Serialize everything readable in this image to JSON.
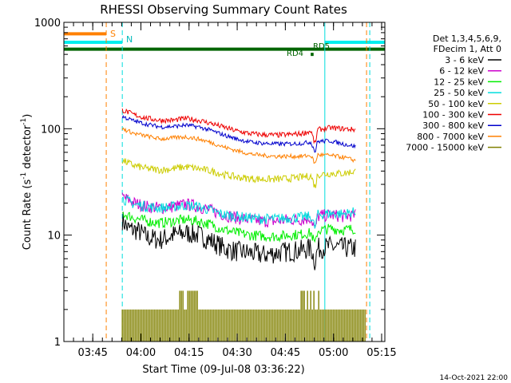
{
  "chart_data": {
    "type": "line",
    "title": "RHESSI Observing Summary Count Rates",
    "xlabel": "Start Time (09-Jul-08 03:36:22)",
    "ylabel": "Count Rate (s⁻¹ detector⁻¹)",
    "ylabel_parts": {
      "pre": "Count Rate (s",
      "sup1": "-1",
      "mid": " detector",
      "sup2": "-1",
      "post": ")"
    },
    "yscale": "log",
    "xlim_min": [
      0,
      100
    ],
    "ylim": [
      1,
      1000
    ],
    "x_ticks": [
      {
        "value": 9,
        "label": "03:45"
      },
      {
        "value": 24,
        "label": "04:00"
      },
      {
        "value": 39,
        "label": "04:15"
      },
      {
        "value": 54,
        "label": "04:30"
      },
      {
        "value": 69,
        "label": "04:45"
      },
      {
        "value": 84,
        "label": "05:00"
      },
      {
        "value": 99,
        "label": "05:15"
      }
    ],
    "y_ticks": [
      {
        "value": 1,
        "label": "1"
      },
      {
        "value": 10,
        "label": "10"
      },
      {
        "value": 100,
        "label": "100"
      },
      {
        "value": 1000,
        "label": "1000"
      }
    ],
    "legend_header": [
      "Det 1,3,4,5,6,9,",
      "FDecim 1, Att 0"
    ],
    "series": [
      {
        "name": "3 - 6 keV",
        "color": "#000000",
        "start": 18.2,
        "points": [
          [
            18.2,
            14
          ],
          [
            20,
            11.5
          ],
          [
            23,
            11
          ],
          [
            26,
            9.5
          ],
          [
            30,
            9
          ],
          [
            34,
            10
          ],
          [
            38,
            10.5
          ],
          [
            42,
            10
          ],
          [
            46,
            8.8
          ],
          [
            50,
            7.5
          ],
          [
            54,
            7
          ],
          [
            58,
            6.8
          ],
          [
            62,
            6.5
          ],
          [
            66,
            6.8
          ],
          [
            70,
            7
          ],
          [
            74,
            7.2
          ],
          [
            77,
            7.5
          ],
          [
            78.3,
            5.5
          ],
          [
            79,
            7.5
          ],
          [
            83,
            7.8
          ],
          [
            87,
            7.6
          ],
          [
            91,
            7.5
          ]
        ],
        "noise": 0.1
      },
      {
        "name": "6 - 12 keV",
        "color": "#cc00cc",
        "start": 18.2,
        "points": [
          [
            18.2,
            23
          ],
          [
            22,
            20
          ],
          [
            26,
            18.5
          ],
          [
            30,
            18
          ],
          [
            34,
            18.5
          ],
          [
            38,
            19.5
          ],
          [
            42,
            18.5
          ],
          [
            46,
            17
          ],
          [
            50,
            15.5
          ],
          [
            54,
            14.5
          ],
          [
            58,
            14
          ],
          [
            62,
            13.5
          ],
          [
            66,
            13.5
          ],
          [
            70,
            14
          ],
          [
            74,
            14
          ],
          [
            77,
            14.5
          ],
          [
            78.3,
            11
          ],
          [
            79,
            15
          ],
          [
            83,
            15.5
          ],
          [
            87,
            15
          ],
          [
            91,
            15.5
          ]
        ],
        "noise": 0.06
      },
      {
        "name": "12 - 25 keV",
        "color": "#00ee00",
        "start": 18.2,
        "points": [
          [
            18.2,
            16
          ],
          [
            22,
            14.5
          ],
          [
            26,
            13.5
          ],
          [
            30,
            13
          ],
          [
            34,
            13.5
          ],
          [
            38,
            14
          ],
          [
            42,
            13.5
          ],
          [
            46,
            12.5
          ],
          [
            50,
            11.2
          ],
          [
            54,
            10.5
          ],
          [
            58,
            10
          ],
          [
            62,
            9.8
          ],
          [
            66,
            9.7
          ],
          [
            70,
            10
          ],
          [
            74,
            10.2
          ],
          [
            77,
            10.5
          ],
          [
            78.3,
            8
          ],
          [
            79,
            11
          ],
          [
            83,
            11.5
          ],
          [
            87,
            11.2
          ],
          [
            91,
            11.5
          ]
        ],
        "noise": 0.05
      },
      {
        "name": "25 - 50 keV",
        "color": "#00dddd",
        "start": 18.2,
        "points": [
          [
            18.2,
            22
          ],
          [
            22,
            19.5
          ],
          [
            26,
            18.5
          ],
          [
            30,
            18
          ],
          [
            34,
            18.5
          ],
          [
            38,
            19
          ],
          [
            42,
            18.5
          ],
          [
            46,
            17
          ],
          [
            50,
            15.5
          ],
          [
            54,
            15
          ],
          [
            58,
            14.5
          ],
          [
            62,
            14.2
          ],
          [
            66,
            14.2
          ],
          [
            70,
            14.5
          ],
          [
            74,
            14.7
          ],
          [
            77,
            15
          ],
          [
            78.3,
            11.5
          ],
          [
            79,
            15.5
          ],
          [
            83,
            16
          ],
          [
            87,
            15.8
          ],
          [
            91,
            16.5
          ]
        ],
        "noise": 0.05
      },
      {
        "name": "50 - 100 keV",
        "color": "#cccc00",
        "start": 18.2,
        "points": [
          [
            18.2,
            50
          ],
          [
            22,
            45
          ],
          [
            26,
            42
          ],
          [
            30,
            41
          ],
          [
            34,
            42
          ],
          [
            38,
            44
          ],
          [
            42,
            42
          ],
          [
            46,
            40
          ],
          [
            50,
            37
          ],
          [
            54,
            35
          ],
          [
            58,
            34
          ],
          [
            62,
            33.5
          ],
          [
            66,
            33.5
          ],
          [
            70,
            34
          ],
          [
            74,
            35
          ],
          [
            77,
            36
          ],
          [
            78.3,
            28
          ],
          [
            79,
            37
          ],
          [
            83,
            38
          ],
          [
            87,
            38
          ],
          [
            91,
            40
          ]
        ],
        "noise": 0.035
      },
      {
        "name": "100 - 300 keV",
        "color": "#ee0000",
        "start": 18.2,
        "points": [
          [
            18.2,
            150
          ],
          [
            22,
            135
          ],
          [
            26,
            125
          ],
          [
            30,
            120
          ],
          [
            34,
            120
          ],
          [
            38,
            125
          ],
          [
            42,
            120
          ],
          [
            46,
            112
          ],
          [
            50,
            103
          ],
          [
            54,
            95
          ],
          [
            58,
            90
          ],
          [
            62,
            88
          ],
          [
            66,
            87
          ],
          [
            70,
            88
          ],
          [
            74,
            90
          ],
          [
            77,
            95
          ],
          [
            78.3,
            70
          ],
          [
            79,
            98
          ],
          [
            83,
            102
          ],
          [
            87,
            100
          ],
          [
            91,
            98
          ]
        ],
        "noise": 0.025
      },
      {
        "name": "300 - 800 keV",
        "color": "#0000cc",
        "start": 18.2,
        "points": [
          [
            18.2,
            130
          ],
          [
            22,
            118
          ],
          [
            26,
            110
          ],
          [
            30,
            104
          ],
          [
            34,
            105
          ],
          [
            38,
            108
          ],
          [
            42,
            104
          ],
          [
            46,
            96
          ],
          [
            50,
            87
          ],
          [
            54,
            80
          ],
          [
            58,
            75
          ],
          [
            62,
            73
          ],
          [
            66,
            72
          ],
          [
            70,
            72
          ],
          [
            74,
            73
          ],
          [
            77,
            75
          ],
          [
            78.3,
            60
          ],
          [
            79,
            76
          ],
          [
            83,
            77
          ],
          [
            87,
            72
          ],
          [
            91,
            68
          ]
        ],
        "noise": 0.02
      },
      {
        "name": "800 - 7000 keV",
        "color": "#ff8000",
        "start": 18.2,
        "points": [
          [
            18.2,
            100
          ],
          [
            22,
            90
          ],
          [
            26,
            85
          ],
          [
            30,
            80
          ],
          [
            34,
            82
          ],
          [
            38,
            84
          ],
          [
            42,
            80
          ],
          [
            46,
            74
          ],
          [
            50,
            67
          ],
          [
            54,
            62
          ],
          [
            58,
            58
          ],
          [
            62,
            56
          ],
          [
            66,
            55
          ],
          [
            70,
            55
          ],
          [
            74,
            55
          ],
          [
            77,
            56
          ],
          [
            78.3,
            46
          ],
          [
            79,
            57
          ],
          [
            83,
            56
          ],
          [
            87,
            54
          ],
          [
            91,
            50
          ]
        ],
        "noise": 0.02
      },
      {
        "name": "7000 - 15000 keV",
        "color": "#808000",
        "start": 18.2,
        "points": [],
        "noise": 0
      }
    ],
    "markers": {
      "S_label": "S",
      "N_label": "N",
      "RD4_label": "RD4",
      "RD5_label": "RD5"
    },
    "vertical_lines": [
      {
        "value": 13.2,
        "color": "#ff8000",
        "style": "dashed"
      },
      {
        "value": 18.2,
        "color": "#00dddd",
        "style": "dashed"
      },
      {
        "value": 81.3,
        "color": "#00dddd",
        "style": "solid"
      },
      {
        "value": 94.3,
        "color": "#ff8000",
        "style": "dashed"
      },
      {
        "value": 95.3,
        "color": "#00dddd",
        "style": "dashed"
      }
    ],
    "timestamp": "14-Oct-2021 22:00"
  }
}
